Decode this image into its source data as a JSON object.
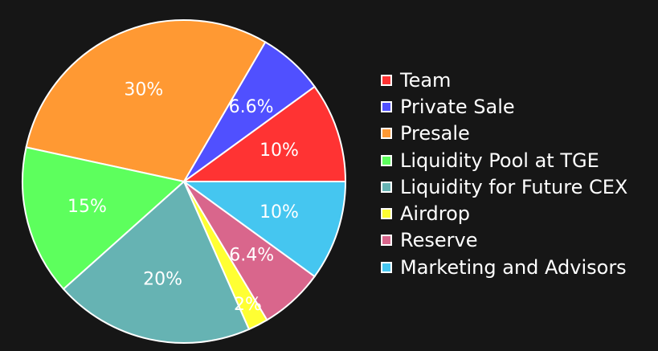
{
  "chart_data": {
    "type": "pie",
    "slices": [
      {
        "name": "Team",
        "value": 10,
        "label": "10%",
        "color": "#ff3333"
      },
      {
        "name": "Private Sale",
        "value": 6.6,
        "label": "6.6%",
        "color": "#5050ff"
      },
      {
        "name": "Presale",
        "value": 30,
        "label": "30%",
        "color": "#ff9933"
      },
      {
        "name": "Liquidity Pool at TGE",
        "value": 15,
        "label": "15%",
        "color": "#5dff5d"
      },
      {
        "name": "Liquidity for Future CEX",
        "value": 20,
        "label": "20%",
        "color": "#66b3b3"
      },
      {
        "name": "Airdrop",
        "value": 2,
        "label": "2%",
        "color": "#ffff33"
      },
      {
        "name": "Reserve",
        "value": 6.4,
        "label": "6.4%",
        "color": "#d9668c"
      },
      {
        "name": "Marketing and Advisors",
        "value": 10,
        "label": "10%",
        "color": "#45c6f0"
      }
    ],
    "legend_position": "right"
  },
  "legend": [
    {
      "label": "Team",
      "color": "#ff3333"
    },
    {
      "label": "Private Sale",
      "color": "#5050ff"
    },
    {
      "label": "Presale",
      "color": "#ff9933"
    },
    {
      "label": "Liquidity Pool at TGE",
      "color": "#5dff5d"
    },
    {
      "label": "Liquidity for Future CEX",
      "color": "#66b3b3"
    },
    {
      "label": "Airdrop",
      "color": "#ffff33"
    },
    {
      "label": "Reserve",
      "color": "#d9668c"
    },
    {
      "label": "Marketing and Advisors",
      "color": "#45c6f0"
    }
  ]
}
